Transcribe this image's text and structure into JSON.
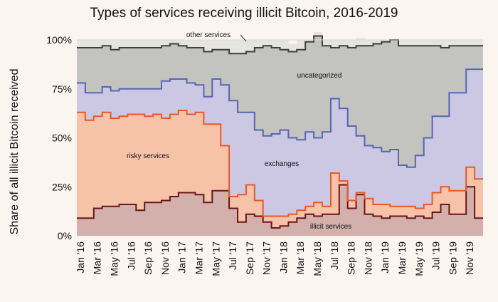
{
  "chart_data": {
    "type": "area",
    "title": "Types of services receiving illicit Bitcoin, 2016-2019",
    "xlabel": "",
    "ylabel": "Share of all illicit Bitcoin received",
    "ylim": [
      0,
      100
    ],
    "yticks": [
      "0%",
      "25%",
      "50%",
      "75%",
      "100%"
    ],
    "xtick_labels": [
      "Jan '16",
      "Mar '16",
      "May '16",
      "Jul '16",
      "Sep '16",
      "Nov '16",
      "Jan '17",
      "Mar '17",
      "May '17",
      "Jul '17",
      "Sep '17",
      "Nov '17",
      "Jan '18",
      "Mar '18",
      "May '18",
      "Jul '18",
      "Sep '18",
      "Nov '18",
      "Jan '19",
      "Mar '19",
      "May '19",
      "Jul '19",
      "Sep '19",
      "Nov '19"
    ],
    "stacked": true,
    "step": true,
    "x_months": [
      "2016-01",
      "2016-02",
      "2016-03",
      "2016-04",
      "2016-05",
      "2016-06",
      "2016-07",
      "2016-08",
      "2016-09",
      "2016-10",
      "2016-11",
      "2016-12",
      "2017-01",
      "2017-02",
      "2017-03",
      "2017-04",
      "2017-05",
      "2017-06",
      "2017-07",
      "2017-08",
      "2017-09",
      "2017-10",
      "2017-11",
      "2017-12",
      "2018-01",
      "2018-02",
      "2018-03",
      "2018-04",
      "2018-05",
      "2018-06",
      "2018-07",
      "2018-08",
      "2018-09",
      "2018-10",
      "2018-11",
      "2018-12",
      "2019-01",
      "2019-02",
      "2019-03",
      "2019-04",
      "2019-05",
      "2019-06",
      "2019-07",
      "2019-08",
      "2019-09",
      "2019-10",
      "2019-11",
      "2019-12"
    ],
    "series": [
      {
        "name": "illicit services",
        "color": "#6b1518",
        "fill": "#d3b0ab",
        "values": [
          9,
          9,
          14,
          15,
          15,
          16,
          16,
          13,
          17,
          17,
          18,
          20,
          22,
          22,
          21,
          17,
          23,
          23,
          14,
          7,
          11,
          10,
          7,
          4,
          5,
          7,
          9,
          11,
          10,
          11,
          11,
          26,
          14,
          21,
          11,
          10,
          9,
          10,
          10,
          9,
          10,
          9,
          12,
          16,
          11,
          11,
          25,
          9
        ]
      },
      {
        "name": "risky services",
        "color": "#e8582a",
        "fill": "#f6c2a8",
        "values": [
          54,
          50,
          47,
          48,
          45,
          45,
          46,
          49,
          44,
          45,
          42,
          42,
          42,
          40,
          42,
          40,
          34,
          23,
          6,
          14,
          15,
          8,
          3,
          6,
          5,
          4,
          4,
          4,
          7,
          4,
          21,
          2,
          4,
          1,
          8,
          6,
          7,
          5,
          5,
          6,
          4,
          7,
          10,
          9,
          12,
          12,
          10,
          20
        ]
      },
      {
        "name": "exchanges",
        "color": "#5567b0",
        "fill": "#ccc8e4",
        "values": [
          15,
          14,
          12,
          13,
          14,
          14,
          13,
          13,
          14,
          13,
          19,
          18,
          16,
          16,
          14,
          14,
          23,
          31,
          49,
          42,
          37,
          36,
          41,
          42,
          44,
          39,
          36,
          38,
          33,
          38,
          38,
          37,
          38,
          29,
          27,
          29,
          27,
          29,
          21,
          20,
          27,
          34,
          39,
          36,
          50,
          50,
          50,
          56
        ]
      },
      {
        "name": "uncategorized",
        "color": "#3f3f3f",
        "fill": "#c3c3c0",
        "values": [
          18,
          23,
          23,
          21,
          21,
          21,
          21,
          21,
          21,
          21,
          18,
          18,
          17,
          18,
          19,
          23,
          15,
          18,
          24,
          30,
          31,
          42,
          46,
          44,
          41,
          44,
          46,
          46,
          52,
          44,
          26,
          32,
          40,
          46,
          51,
          53,
          56,
          56,
          61,
          62,
          56,
          47,
          36,
          35,
          24,
          24,
          12,
          12
        ]
      },
      {
        "name": "other services",
        "color": "#7a7a7a",
        "fill": "#e6e4e1",
        "values": [
          4,
          4,
          4,
          3,
          5,
          4,
          4,
          4,
          4,
          4,
          3,
          2,
          3,
          4,
          4,
          6,
          5,
          5,
          7,
          7,
          6,
          4,
          3,
          4,
          5,
          4,
          5,
          1,
          2,
          3,
          4,
          3,
          4,
          4,
          3,
          2,
          1,
          0,
          3,
          3,
          3,
          3,
          3,
          4,
          3,
          3,
          3,
          3
        ]
      }
    ]
  }
}
